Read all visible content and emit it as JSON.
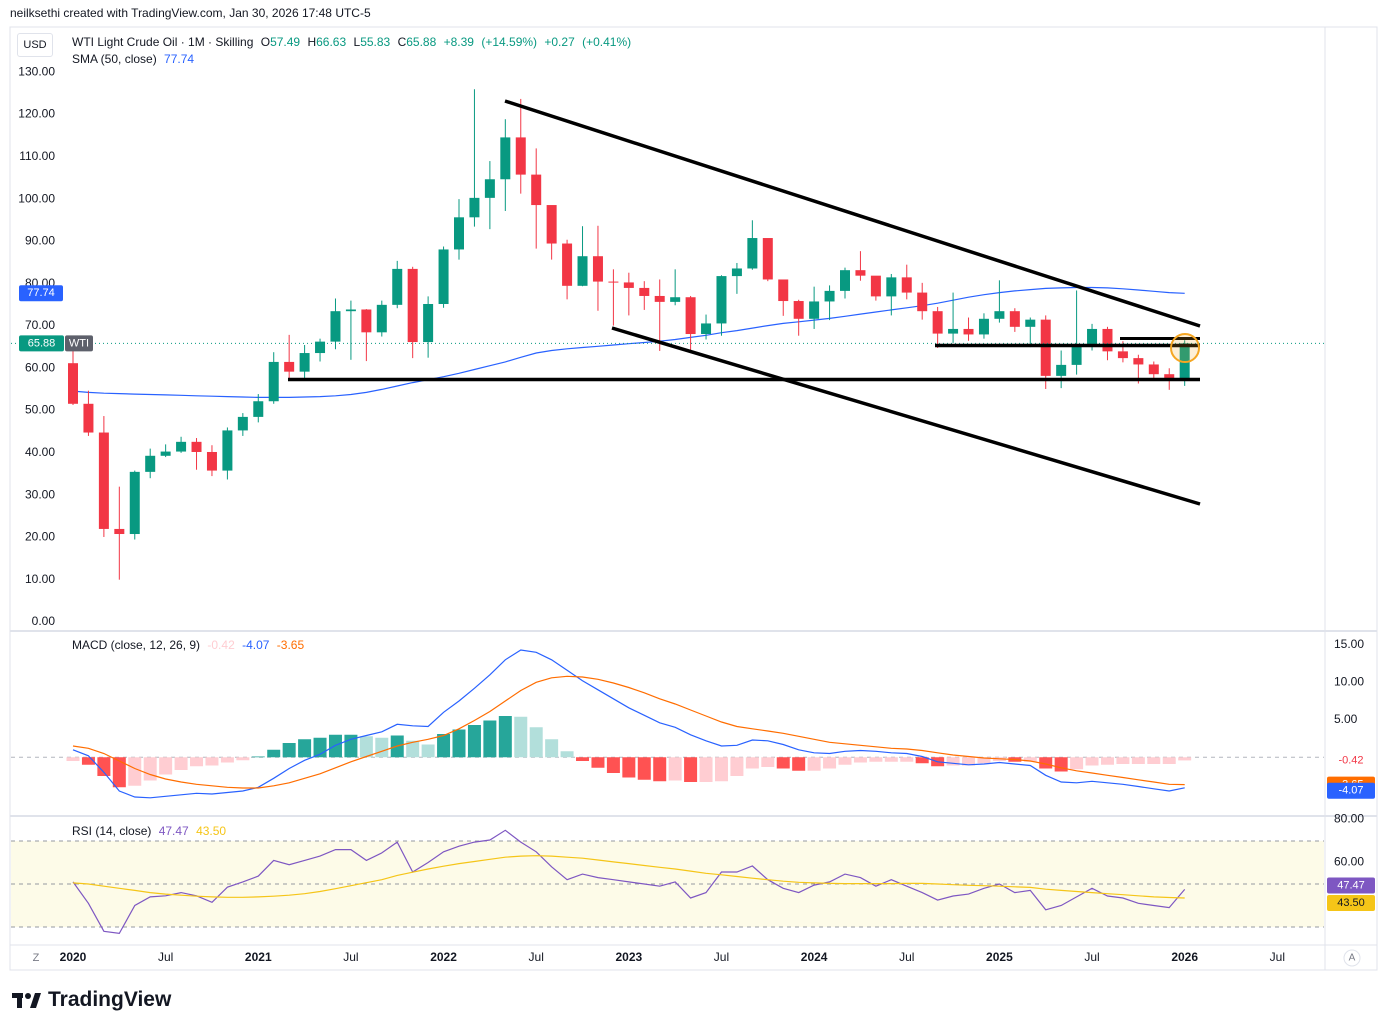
{
  "header": {
    "credit": "neilksethi created with TradingView.com, Jan 30, 2026 17:48 UTC-5",
    "currency": "USD",
    "logo": "TradingView",
    "corner_left": "Z",
    "corner_right": "A"
  },
  "chart_data": [
    {
      "type": "candlestick",
      "title": "WTI Light Crude Oil · 1M · Skilling",
      "symbol": "WTI",
      "categories": [
        "2020",
        null,
        null,
        null,
        null,
        null,
        "Jul",
        null,
        null,
        null,
        null,
        null,
        "2021",
        null,
        null,
        null,
        null,
        null,
        "Jul",
        null,
        null,
        null,
        null,
        null,
        "2022",
        null,
        null,
        null,
        null,
        null,
        "Jul",
        null,
        null,
        null,
        null,
        null,
        "2023",
        null,
        null,
        null,
        null,
        null,
        "Jul",
        null,
        null,
        null,
        null,
        null,
        "2024",
        null,
        null,
        null,
        null,
        null,
        "Jul",
        null,
        null,
        null,
        null,
        null,
        "2025",
        null,
        null,
        null,
        null,
        null,
        "Jul",
        null,
        null,
        null,
        null,
        null,
        "2026"
      ],
      "x_extra_label": "Jul",
      "open": [
        61.2,
        51.6,
        44.8,
        22.0,
        20.8,
        35.5,
        39.3,
        40.3,
        42.6,
        40.2,
        35.8,
        45.3,
        48.5,
        52.2,
        61.5,
        59.2,
        63.6,
        66.3,
        73.5,
        73.9,
        68.5,
        75.0,
        83.5,
        66.2,
        75.2,
        88.1,
        95.7,
        100.3,
        104.7,
        114.6,
        105.8,
        98.6,
        89.5,
        79.5,
        86.5,
        80.5,
        80.3,
        79.0,
        77.1,
        75.7,
        76.8,
        68.1,
        70.6,
        81.8,
        83.6,
        90.8,
        81.0,
        75.9,
        71.7,
        75.8,
        78.3,
        83.2,
        81.9,
        77.0,
        81.5,
        77.9,
        73.5,
        68.2,
        69.3,
        68.0,
        71.7,
        73.5,
        69.8,
        71.5,
        58.2,
        60.8,
        65.1,
        69.3,
        64.0,
        62.4,
        60.9,
        58.6,
        57.49
      ],
      "high": [
        65.6,
        54.7,
        48.7,
        32.0,
        35.8,
        41.0,
        42.0,
        43.8,
        43.5,
        41.8,
        46.0,
        49.4,
        53.9,
        63.8,
        67.9,
        65.5,
        67.0,
        76.5,
        76.0,
        74.0,
        76.0,
        85.4,
        84.0,
        77.0,
        88.8,
        100.0,
        126.0,
        109.0,
        118.9,
        123.7,
        112.0,
        97.6,
        90.4,
        93.6,
        93.7,
        83.4,
        82.6,
        80.6,
        81.0,
        83.4,
        77.1,
        72.7,
        82.0,
        84.9,
        95.0,
        89.8,
        80.2,
        76.2,
        79.3,
        79.6,
        83.8,
        87.7,
        81.6,
        82.3,
        84.5,
        80.2,
        74.5,
        77.9,
        72.0,
        73.0,
        80.8,
        74.2,
        72.0,
        72.5,
        64.2,
        78.4,
        70.5,
        69.8,
        66.4,
        63.2,
        61.6,
        60.0,
        66.63
      ],
      "low": [
        51.3,
        44.0,
        20.1,
        10.0,
        19.5,
        34.0,
        39.0,
        40.0,
        36.0,
        34.5,
        33.7,
        44.0,
        47.2,
        51.6,
        57.3,
        57.6,
        61.6,
        64.5,
        62.0,
        61.7,
        67.5,
        74.2,
        62.4,
        62.5,
        74.3,
        85.7,
        93.5,
        92.9,
        97.2,
        101.3,
        88.3,
        85.7,
        76.3,
        79.4,
        73.6,
        70.1,
        72.5,
        73.8,
        64.1,
        74.9,
        63.6,
        66.8,
        67.7,
        77.6,
        83.3,
        80.6,
        72.4,
        67.7,
        69.3,
        71.4,
        76.5,
        80.7,
        76.0,
        72.5,
        76.3,
        71.5,
        64.8,
        66.0,
        66.5,
        67.0,
        70.8,
        68.6,
        65.0,
        55.1,
        55.3,
        58.5,
        64.2,
        61.9,
        61.4,
        56.4,
        57.3,
        54.9,
        55.83
      ],
      "close": [
        51.6,
        44.8,
        22.0,
        20.8,
        35.5,
        39.3,
        40.3,
        42.6,
        40.2,
        35.8,
        45.3,
        48.5,
        52.2,
        61.5,
        59.2,
        63.6,
        66.3,
        73.5,
        73.9,
        68.5,
        75.0,
        83.5,
        66.2,
        75.2,
        88.1,
        95.7,
        100.3,
        104.7,
        114.6,
        105.8,
        98.6,
        89.5,
        79.5,
        86.5,
        80.5,
        80.3,
        79.0,
        77.1,
        75.7,
        76.8,
        68.1,
        70.6,
        81.8,
        83.6,
        90.8,
        81.0,
        75.9,
        71.7,
        75.8,
        78.3,
        83.2,
        81.9,
        77.0,
        81.5,
        77.9,
        73.5,
        68.2,
        69.3,
        68.0,
        71.7,
        73.5,
        69.8,
        71.5,
        58.2,
        60.8,
        65.1,
        69.3,
        64.0,
        62.4,
        60.9,
        58.6,
        57.49,
        65.88
      ],
      "up_color": "#089981",
      "down_color": "#f23645",
      "ohlc_letters": [
        "O",
        "H",
        "L",
        "C"
      ],
      "change_labels": [
        "+8.39",
        "(+14.59%)",
        "+0.27",
        "(+0.41%)"
      ],
      "series": [
        {
          "name": "SMA (50, close)",
          "color": "#2962ff",
          "values": [
            54.6,
            54.3,
            54.1,
            54.0,
            53.9,
            53.8,
            53.7,
            53.6,
            53.5,
            53.4,
            53.3,
            53.2,
            53.1,
            53.1,
            53.1,
            53.2,
            53.3,
            53.5,
            53.8,
            54.3,
            55.0,
            55.8,
            56.6,
            57.3,
            58.0,
            58.8,
            59.7,
            60.6,
            61.5,
            62.6,
            63.6,
            64.2,
            64.6,
            64.9,
            65.2,
            65.5,
            65.8,
            66.1,
            66.4,
            66.8,
            67.3,
            67.8,
            68.4,
            68.9,
            69.5,
            70.1,
            70.6,
            71.0,
            71.4,
            71.8,
            72.3,
            72.8,
            73.3,
            73.8,
            74.3,
            74.8,
            75.4,
            76.1,
            76.8,
            77.4,
            77.9,
            78.3,
            78.6,
            78.9,
            79.0,
            79.1,
            79.1,
            79.0,
            78.8,
            78.5,
            78.2,
            77.9,
            77.74
          ]
        }
      ],
      "ylim": [
        -1.9,
        140
      ],
      "yticks": [
        {
          "value": 0,
          "label": "0.00"
        },
        {
          "value": 10,
          "label": "10.00"
        },
        {
          "value": 20,
          "label": "20.00"
        },
        {
          "value": 30,
          "label": "30.00"
        },
        {
          "value": 40,
          "label": "40.00"
        },
        {
          "value": 50,
          "label": "50.00"
        },
        {
          "value": 60,
          "label": "60.00"
        },
        {
          "value": 70,
          "label": "70.00"
        },
        {
          "value": 80,
          "label": "80.00"
        },
        {
          "value": 90,
          "label": "90.00"
        },
        {
          "value": 100,
          "label": "100.00"
        },
        {
          "value": 110,
          "label": "110.00"
        },
        {
          "value": 120,
          "label": "120.00"
        },
        {
          "value": 130,
          "label": "130.00"
        }
      ],
      "grid": false
    },
    {
      "type": "macd",
      "title": "MACD (close, 12, 26, 9)",
      "histogram": {
        "colors": [
          "#26a69a",
          "#b2dfdb",
          "#ff5252",
          "#ffcdd2"
        ],
        "values": [
          -0.5,
          -1.0,
          -2.5,
          -4.0,
          -3.8,
          -3.1,
          -2.3,
          -1.7,
          -1.2,
          -1.1,
          -0.7,
          -0.4,
          0.1,
          1.0,
          1.9,
          2.4,
          2.6,
          3.0,
          3.0,
          2.8,
          2.6,
          2.9,
          2.2,
          1.7,
          3.1,
          3.7,
          4.3,
          4.9,
          5.5,
          5.4,
          4.0,
          2.4,
          0.8,
          -0.5,
          -1.4,
          -2.1,
          -2.7,
          -3.0,
          -3.2,
          -3.1,
          -3.3,
          -3.3,
          -3.2,
          -2.5,
          -1.5,
          -1.3,
          -1.5,
          -1.8,
          -1.8,
          -1.5,
          -1.0,
          -0.7,
          -0.6,
          -0.6,
          -0.6,
          -0.8,
          -1.2,
          -1.1,
          -1.1,
          -0.8,
          -0.5,
          -0.6,
          -0.6,
          -1.5,
          -1.9,
          -1.6,
          -1.1,
          -1.0,
          -0.9,
          -0.9,
          -0.9,
          -0.9,
          -0.42
        ]
      },
      "series": [
        {
          "color": "#2962ff",
          "values": [
            1.0,
            0.2,
            -2.0,
            -4.5,
            -5.3,
            -5.4,
            -5.2,
            -5.0,
            -4.8,
            -4.9,
            -4.7,
            -4.5,
            -4.0,
            -2.8,
            -1.5,
            -0.4,
            0.4,
            1.6,
            2.4,
            2.9,
            3.4,
            4.4,
            4.2,
            4.1,
            6.0,
            7.5,
            9.2,
            11.0,
            13.0,
            14.3,
            14.0,
            13.0,
            11.6,
            10.2,
            9.0,
            7.8,
            6.6,
            5.6,
            4.6,
            4.0,
            3.0,
            2.2,
            1.5,
            1.6,
            2.3,
            2.2,
            1.7,
            1.0,
            0.6,
            0.5,
            0.8,
            0.9,
            0.8,
            0.6,
            0.5,
            0.1,
            -0.6,
            -0.8,
            -1.0,
            -0.9,
            -0.7,
            -0.9,
            -1.1,
            -2.4,
            -3.3,
            -3.4,
            -3.2,
            -3.4,
            -3.6,
            -3.9,
            -4.2,
            -4.5,
            -4.07
          ]
        },
        {
          "color": "#ff6d00",
          "values": [
            1.5,
            1.2,
            0.5,
            -0.5,
            -1.5,
            -2.3,
            -2.9,
            -3.3,
            -3.6,
            -3.8,
            -4.0,
            -4.1,
            -4.1,
            -3.8,
            -3.4,
            -2.8,
            -2.2,
            -1.4,
            -0.6,
            0.1,
            0.8,
            1.5,
            2.0,
            2.4,
            2.9,
            3.8,
            4.9,
            6.1,
            7.5,
            8.9,
            10.0,
            10.6,
            10.8,
            10.7,
            10.4,
            9.9,
            9.3,
            8.6,
            7.8,
            7.1,
            6.3,
            5.5,
            4.7,
            4.1,
            3.8,
            3.5,
            3.2,
            2.8,
            2.4,
            2.0,
            1.8,
            1.6,
            1.4,
            1.2,
            1.1,
            0.9,
            0.6,
            0.3,
            0.1,
            -0.1,
            -0.2,
            -0.3,
            -0.5,
            -0.9,
            -1.4,
            -1.8,
            -2.1,
            -2.4,
            -2.7,
            -3.0,
            -3.3,
            -3.6,
            -3.65
          ]
        }
      ],
      "ylim": [
        -7.7,
        16.7
      ],
      "yticks": [
        {
          "value": 5,
          "label": "5.00"
        },
        {
          "value": 10,
          "label": "10.00"
        },
        {
          "value": 15,
          "label": "15.00"
        }
      ],
      "zero_line": true
    },
    {
      "type": "rsi",
      "title": "RSI (14, close)",
      "series": [
        {
          "color": "#7e57c2",
          "values": [
            51,
            41,
            28,
            27,
            40,
            44,
            44.5,
            46,
            44.5,
            41.5,
            48.5,
            51,
            53.7,
            61,
            59,
            61,
            63,
            66,
            66,
            61,
            64.5,
            69.5,
            55.6,
            60,
            65,
            67.6,
            69.5,
            70.5,
            75,
            69.5,
            65,
            58,
            52,
            54.6,
            53,
            52,
            51,
            50,
            49,
            51,
            43.5,
            46,
            55.6,
            55.6,
            58.4,
            52,
            48,
            46,
            49.5,
            51,
            54.6,
            53,
            49,
            52,
            49,
            46,
            42.5,
            44.4,
            45.3,
            48,
            50,
            46,
            47,
            38,
            40,
            44,
            48,
            44.4,
            43.5,
            41,
            40,
            39,
            47.47
          ]
        },
        {
          "color": "#f5c518",
          "values": [
            50.5,
            50,
            49,
            48,
            47,
            46,
            45.3,
            44.8,
            44.3,
            44,
            43.8,
            43.8,
            44,
            44.3,
            44.8,
            45.5,
            46.5,
            47.8,
            49.2,
            50.6,
            52,
            54,
            55.5,
            57,
            58.3,
            59.5,
            60.5,
            61.5,
            62.5,
            63,
            63.2,
            63,
            62.5,
            62,
            61.2,
            60.3,
            59.5,
            58.6,
            57.8,
            57,
            56,
            55,
            54.3,
            53.5,
            52.7,
            52,
            51.3,
            50.8,
            50.5,
            50.3,
            50.2,
            50.2,
            50.2,
            50.2,
            50.3,
            50.3,
            50,
            49.7,
            49.4,
            49.2,
            49,
            48.7,
            48.4,
            47.6,
            47,
            46.5,
            46,
            45.5,
            45,
            44.5,
            44,
            43.7,
            43.5
          ],
          "value_labels": [
            null,
            null,
            null,
            null,
            null,
            null,
            null,
            null,
            null,
            null,
            null,
            null,
            null,
            null,
            null,
            null,
            null,
            null,
            null,
            null,
            null,
            null,
            null,
            null,
            null,
            null,
            null,
            null,
            null,
            null,
            null,
            null,
            null,
            null,
            null,
            null,
            null,
            null,
            null,
            null,
            null,
            null,
            null,
            null,
            null,
            null,
            null,
            null,
            null,
            null,
            null,
            null,
            null,
            null,
            null,
            null,
            null,
            null,
            null,
            null,
            null,
            null,
            null,
            null,
            null,
            null,
            null,
            null,
            null,
            null,
            null,
            null,
            "43.50"
          ]
        }
      ],
      "bands": [
        70,
        50,
        30
      ],
      "band_fill": "#fdfbe8",
      "ylim": [
        21.6,
        81.2
      ],
      "yticks": [
        {
          "value": 60,
          "label": "60.00"
        },
        {
          "value": 80,
          "label": "80.00"
        }
      ]
    }
  ]
}
